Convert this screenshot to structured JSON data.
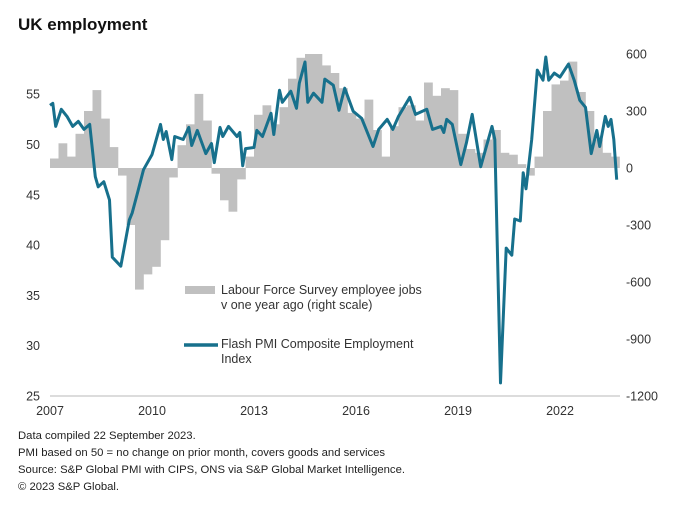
{
  "title": "UK employment",
  "footer": [
    "Data compiled 22 September 2023.",
    "PMI based on 50 = no change on prior month, covers goods and services",
    "Source: S&P Global PMI with CIPS, ONS via S&P Global Market Intelligence.",
    "© 2023 S&P Global."
  ],
  "chart_data": {
    "type": "bar+line",
    "title": "UK employment",
    "grid": false,
    "legend_position": "center",
    "x_ticks": [
      "2007",
      "2010",
      "2013",
      "2016",
      "2019",
      "2022"
    ],
    "y_left": {
      "ticks": [
        25,
        30,
        35,
        40,
        45,
        50,
        55
      ],
      "range": [
        25,
        59
      ]
    },
    "y_right": {
      "ticks": [
        600,
        300,
        0,
        -300,
        -600,
        -900,
        -1200
      ],
      "range": [
        -1200,
        600
      ]
    },
    "colors": {
      "bars": "#c0c0c0",
      "line": "#17708c"
    },
    "series": [
      {
        "name": "Labour Force Survey employee jobs v one year ago (right scale)",
        "legend_lines": [
          "Labour Force Survey employee jobs",
          "v one year ago (right scale)"
        ],
        "type": "bar",
        "axis": "right",
        "x": [
          "2007-01",
          "2007-04",
          "2007-07",
          "2007-10",
          "2008-01",
          "2008-04",
          "2008-07",
          "2008-10",
          "2009-01",
          "2009-04",
          "2009-07",
          "2009-10",
          "2010-01",
          "2010-04",
          "2010-07",
          "2010-10",
          "2011-01",
          "2011-04",
          "2011-07",
          "2011-10",
          "2012-01",
          "2012-04",
          "2012-07",
          "2012-10",
          "2013-01",
          "2013-04",
          "2013-07",
          "2013-10",
          "2014-01",
          "2014-04",
          "2014-07",
          "2014-10",
          "2015-01",
          "2015-04",
          "2015-07",
          "2015-10",
          "2016-01",
          "2016-04",
          "2016-07",
          "2016-10",
          "2017-01",
          "2017-04",
          "2017-07",
          "2017-10",
          "2018-01",
          "2018-04",
          "2018-07",
          "2018-10",
          "2019-01",
          "2019-04",
          "2019-07",
          "2019-10",
          "2020-01",
          "2020-04",
          "2020-07",
          "2020-10",
          "2021-01",
          "2021-04",
          "2021-07",
          "2021-10",
          "2022-01",
          "2022-04",
          "2022-07",
          "2022-10",
          "2023-01",
          "2023-04",
          "2023-07"
        ],
        "values": [
          50,
          130,
          60,
          180,
          300,
          410,
          260,
          110,
          -40,
          -300,
          -640,
          -560,
          -520,
          -380,
          -50,
          120,
          230,
          390,
          250,
          -30,
          -170,
          -230,
          -60,
          60,
          280,
          330,
          230,
          320,
          470,
          580,
          600,
          600,
          540,
          500,
          420,
          290,
          260,
          360,
          200,
          60,
          220,
          320,
          330,
          250,
          450,
          380,
          420,
          410,
          180,
          100,
          80,
          150,
          200,
          80,
          70,
          20,
          -40,
          60,
          300,
          440,
          460,
          560,
          400,
          300,
          150,
          80,
          60
        ]
      },
      {
        "name": "Flash PMI Composite Employment Index",
        "legend_lines": [
          "Flash PMI Composite Employment",
          "Index"
        ],
        "type": "line",
        "axis": "left",
        "x": [
          "2007-01",
          "2007-02",
          "2007-03",
          "2007-05",
          "2007-07",
          "2007-09",
          "2007-11",
          "2008-01",
          "2008-03",
          "2008-05",
          "2008-06",
          "2008-08",
          "2008-10",
          "2008-11",
          "2009-02",
          "2009-05",
          "2009-06",
          "2009-08",
          "2009-10",
          "2010-01",
          "2010-04",
          "2010-05",
          "2010-06",
          "2010-08",
          "2010-09",
          "2010-12",
          "2011-02",
          "2011-03",
          "2011-05",
          "2011-08",
          "2011-10",
          "2011-11",
          "2012-01",
          "2012-02",
          "2012-04",
          "2012-07",
          "2012-08",
          "2012-09",
          "2012-10",
          "2013-01",
          "2013-02",
          "2013-04",
          "2013-07",
          "2013-08",
          "2013-10",
          "2013-11",
          "2014-02",
          "2014-04",
          "2014-05",
          "2014-07",
          "2014-08",
          "2014-10",
          "2015-01",
          "2015-02",
          "2015-05",
          "2015-07",
          "2015-09",
          "2015-12",
          "2016-03",
          "2016-07",
          "2016-09",
          "2016-12",
          "2017-02",
          "2017-04",
          "2017-08",
          "2017-10",
          "2018-02",
          "2018-04",
          "2018-07",
          "2018-08",
          "2018-09",
          "2018-11",
          "2019-02",
          "2019-04",
          "2019-06",
          "2019-09",
          "2020-01",
          "2020-02",
          "2020-04",
          "2020-06",
          "2020-08",
          "2020-09",
          "2020-11",
          "2020-12",
          "2021-01",
          "2021-03",
          "2021-05",
          "2021-07",
          "2021-08",
          "2021-09",
          "2021-11",
          "2022-01",
          "2022-04",
          "2022-06",
          "2022-08",
          "2022-10",
          "2022-12",
          "2023-02",
          "2023-03",
          "2023-05",
          "2023-06",
          "2023-07",
          "2023-08",
          "2023-09"
        ],
        "values": [
          53.9,
          54.1,
          51.8,
          53.5,
          52.8,
          51.8,
          52.3,
          51.5,
          52.0,
          46.8,
          45.8,
          46.3,
          44.5,
          38.8,
          37.9,
          42.5,
          43.2,
          45.3,
          47.5,
          49.0,
          52.0,
          50.5,
          51.3,
          48.5,
          50.8,
          50.5,
          51.7,
          49.9,
          51.4,
          49.1,
          50.1,
          48.2,
          51.7,
          50.8,
          51.8,
          50.8,
          51.2,
          47.9,
          49.6,
          49.7,
          51.4,
          50.8,
          53.1,
          51.0,
          55.4,
          54.2,
          55.3,
          53.6,
          56.1,
          58.2,
          54.2,
          55.1,
          54.2,
          56.5,
          55.9,
          53.4,
          55.6,
          53.3,
          52.6,
          49.8,
          51.5,
          52.5,
          51.5,
          52.8,
          54.7,
          53.0,
          53.5,
          51.5,
          51.8,
          51.2,
          52.5,
          52.0,
          48.0,
          50.2,
          53.0,
          47.8,
          51.8,
          50.5,
          26.3,
          39.7,
          39.0,
          42.6,
          42.4,
          47.2,
          45.6,
          50.5,
          57.4,
          56.4,
          58.7,
          56.4,
          57.1,
          56.7,
          58.0,
          56.4,
          54.4,
          53.7,
          49.1,
          51.4,
          49.8,
          52.8,
          51.8,
          52.5,
          50.5,
          46.5
        ]
      }
    ]
  }
}
